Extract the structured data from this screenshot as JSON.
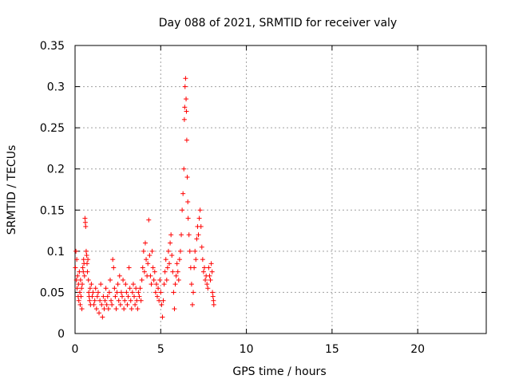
{
  "chart_data": {
    "type": "scatter",
    "title": "Day 088 of 2021, SRMTID for receiver valy",
    "xlabel": "GPS time / hours",
    "ylabel": "SRMTID / TECUs",
    "xlim": [
      0,
      24
    ],
    "ylim": [
      0,
      0.35
    ],
    "xticks": [
      0,
      5,
      10,
      15,
      20
    ],
    "xtick_labels": [
      "0",
      "5",
      "10",
      "15",
      "20"
    ],
    "yticks": [
      0,
      0.05,
      0.1,
      0.15,
      0.2,
      0.25,
      0.3,
      0.35
    ],
    "ytick_labels": [
      "0",
      "0.05",
      "0.1",
      "0.15",
      "0.2",
      "0.25",
      "0.3",
      "0.35"
    ],
    "grid": true,
    "marker": "+",
    "color": "#ff0000",
    "series": [
      {
        "name": "SRMTID",
        "points": [
          [
            0.02,
            0.08
          ],
          [
            0.05,
            0.1
          ],
          [
            0.08,
            0.065
          ],
          [
            0.1,
            0.09
          ],
          [
            0.12,
            0.055
          ],
          [
            0.15,
            0.07
          ],
          [
            0.18,
            0.045
          ],
          [
            0.2,
            0.06
          ],
          [
            0.22,
            0.04
          ],
          [
            0.25,
            0.075
          ],
          [
            0.28,
            0.05
          ],
          [
            0.3,
            0.035
          ],
          [
            0.32,
            0.065
          ],
          [
            0.35,
            0.045
          ],
          [
            0.38,
            0.055
          ],
          [
            0.4,
            0.03
          ],
          [
            0.42,
            0.06
          ],
          [
            0.45,
            0.08
          ],
          [
            0.48,
            0.075
          ],
          [
            0.5,
            0.09
          ],
          [
            0.52,
            0.085
          ],
          [
            0.55,
            0.07
          ],
          [
            0.58,
            0.14
          ],
          [
            0.6,
            0.135
          ],
          [
            0.62,
            0.13
          ],
          [
            0.65,
            0.1
          ],
          [
            0.68,
            0.095
          ],
          [
            0.7,
            0.085
          ],
          [
            0.72,
            0.075
          ],
          [
            0.75,
            0.09
          ],
          [
            0.78,
            0.065
          ],
          [
            0.8,
            0.05
          ],
          [
            0.82,
            0.045
          ],
          [
            0.85,
            0.04
          ],
          [
            0.88,
            0.055
          ],
          [
            0.9,
            0.035
          ],
          [
            0.95,
            0.06
          ],
          [
            1.0,
            0.045
          ],
          [
            1.05,
            0.05
          ],
          [
            1.1,
            0.035
          ],
          [
            1.15,
            0.04
          ],
          [
            1.2,
            0.055
          ],
          [
            1.25,
            0.03
          ],
          [
            1.3,
            0.045
          ],
          [
            1.35,
            0.05
          ],
          [
            1.4,
            0.025
          ],
          [
            1.45,
            0.04
          ],
          [
            1.5,
            0.06
          ],
          [
            1.55,
            0.035
          ],
          [
            1.6,
            0.02
          ],
          [
            1.65,
            0.045
          ],
          [
            1.7,
            0.03
          ],
          [
            1.75,
            0.04
          ],
          [
            1.8,
            0.055
          ],
          [
            1.85,
            0.035
          ],
          [
            1.9,
            0.045
          ],
          [
            1.95,
            0.03
          ],
          [
            2.0,
            0.05
          ],
          [
            2.05,
            0.065
          ],
          [
            2.1,
            0.04
          ],
          [
            2.15,
            0.035
          ],
          [
            2.2,
            0.09
          ],
          [
            2.25,
            0.08
          ],
          [
            2.3,
            0.055
          ],
          [
            2.35,
            0.045
          ],
          [
            2.4,
            0.03
          ],
          [
            2.45,
            0.05
          ],
          [
            2.5,
            0.06
          ],
          [
            2.55,
            0.04
          ],
          [
            2.6,
            0.07
          ],
          [
            2.65,
            0.035
          ],
          [
            2.7,
            0.05
          ],
          [
            2.75,
            0.045
          ],
          [
            2.8,
            0.065
          ],
          [
            2.85,
            0.03
          ],
          [
            2.9,
            0.04
          ],
          [
            2.95,
            0.06
          ],
          [
            3.0,
            0.05
          ],
          [
            3.05,
            0.035
          ],
          [
            3.1,
            0.045
          ],
          [
            3.15,
            0.08
          ],
          [
            3.2,
            0.055
          ],
          [
            3.25,
            0.04
          ],
          [
            3.3,
            0.03
          ],
          [
            3.35,
            0.05
          ],
          [
            3.4,
            0.06
          ],
          [
            3.45,
            0.045
          ],
          [
            3.5,
            0.035
          ],
          [
            3.55,
            0.055
          ],
          [
            3.6,
            0.04
          ],
          [
            3.65,
            0.03
          ],
          [
            3.7,
            0.05
          ],
          [
            3.75,
            0.045
          ],
          [
            3.8,
            0.055
          ],
          [
            3.85,
            0.04
          ],
          [
            3.9,
            0.065
          ],
          [
            3.95,
            0.08
          ],
          [
            4.0,
            0.1
          ],
          [
            4.05,
            0.075
          ],
          [
            4.1,
            0.11
          ],
          [
            4.15,
            0.09
          ],
          [
            4.2,
            0.07
          ],
          [
            4.25,
            0.085
          ],
          [
            4.3,
            0.138
          ],
          [
            4.35,
            0.095
          ],
          [
            4.4,
            0.07
          ],
          [
            4.45,
            0.06
          ],
          [
            4.5,
            0.1
          ],
          [
            4.55,
            0.08
          ],
          [
            4.6,
            0.065
          ],
          [
            4.65,
            0.075
          ],
          [
            4.7,
            0.05
          ],
          [
            4.75,
            0.06
          ],
          [
            4.8,
            0.045
          ],
          [
            4.85,
            0.055
          ],
          [
            4.9,
            0.04
          ],
          [
            4.95,
            0.065
          ],
          [
            5.0,
            0.05
          ],
          [
            5.05,
            0.035
          ],
          [
            5.1,
            0.02
          ],
          [
            5.15,
            0.04
          ],
          [
            5.2,
            0.06
          ],
          [
            5.25,
            0.075
          ],
          [
            5.3,
            0.09
          ],
          [
            5.35,
            0.065
          ],
          [
            5.4,
            0.08
          ],
          [
            5.45,
            0.1
          ],
          [
            5.5,
            0.085
          ],
          [
            5.55,
            0.11
          ],
          [
            5.6,
            0.12
          ],
          [
            5.65,
            0.095
          ],
          [
            5.7,
            0.075
          ],
          [
            5.75,
            0.05
          ],
          [
            5.8,
            0.03
          ],
          [
            5.85,
            0.06
          ],
          [
            5.9,
            0.07
          ],
          [
            5.95,
            0.085
          ],
          [
            6.0,
            0.075
          ],
          [
            6.05,
            0.065
          ],
          [
            6.1,
            0.09
          ],
          [
            6.15,
            0.1
          ],
          [
            6.2,
            0.12
          ],
          [
            6.25,
            0.15
          ],
          [
            6.3,
            0.17
          ],
          [
            6.35,
            0.2
          ],
          [
            6.38,
            0.26
          ],
          [
            6.4,
            0.275
          ],
          [
            6.42,
            0.3
          ],
          [
            6.45,
            0.31
          ],
          [
            6.48,
            0.285
          ],
          [
            6.5,
            0.27
          ],
          [
            6.52,
            0.235
          ],
          [
            6.55,
            0.19
          ],
          [
            6.58,
            0.16
          ],
          [
            6.6,
            0.14
          ],
          [
            6.65,
            0.12
          ],
          [
            6.7,
            0.1
          ],
          [
            6.75,
            0.08
          ],
          [
            6.8,
            0.06
          ],
          [
            6.85,
            0.035
          ],
          [
            6.9,
            0.05
          ],
          [
            6.95,
            0.08
          ],
          [
            7.0,
            0.1
          ],
          [
            7.05,
            0.09
          ],
          [
            7.1,
            0.115
          ],
          [
            7.15,
            0.13
          ],
          [
            7.2,
            0.12
          ],
          [
            7.25,
            0.14
          ],
          [
            7.3,
            0.15
          ],
          [
            7.35,
            0.13
          ],
          [
            7.4,
            0.105
          ],
          [
            7.45,
            0.09
          ],
          [
            7.5,
            0.075
          ],
          [
            7.55,
            0.08
          ],
          [
            7.6,
            0.065
          ],
          [
            7.65,
            0.07
          ],
          [
            7.7,
            0.06
          ],
          [
            7.75,
            0.055
          ],
          [
            7.8,
            0.08
          ],
          [
            7.85,
            0.07
          ],
          [
            7.9,
            0.065
          ],
          [
            7.95,
            0.085
          ],
          [
            8.0,
            0.075
          ],
          [
            8.02,
            0.05
          ],
          [
            8.05,
            0.045
          ],
          [
            8.08,
            0.04
          ],
          [
            8.1,
            0.035
          ]
        ]
      }
    ]
  }
}
